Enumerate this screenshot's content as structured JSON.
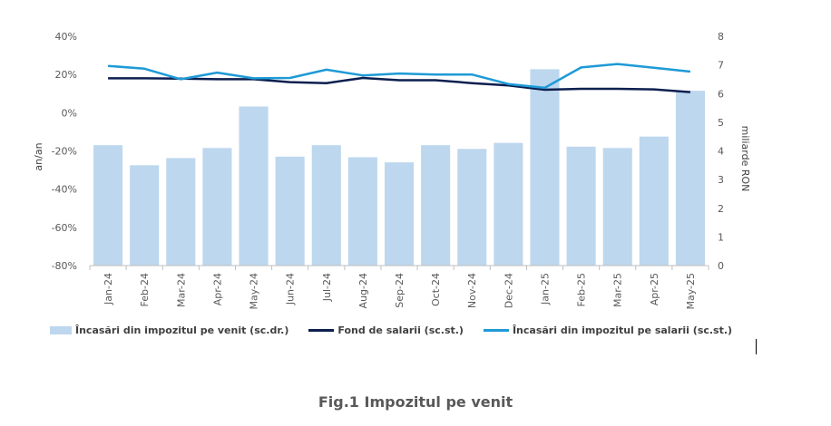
{
  "chart_data": {
    "type": "bar",
    "title": "",
    "categories": [
      "Jan-24",
      "Feb-24",
      "Mar-24",
      "Apr-24",
      "May-24",
      "Jun-24",
      "Jul-24",
      "Aug-24",
      "Sep-24",
      "Oct-24",
      "Nov-24",
      "Dec-24",
      "Jan-25",
      "Feb-25",
      "Mar-25",
      "Apr-25",
      "May-25"
    ],
    "y_left": {
      "label": "an/an",
      "min": -0.8,
      "max": 0.4,
      "ticks": [
        -0.8,
        -0.6,
        -0.4,
        -0.2,
        0,
        0.2,
        0.4
      ],
      "tick_labels": [
        "-80%",
        "-60%",
        "-40%",
        "-20%",
        "0%",
        "20%",
        "40%"
      ]
    },
    "y_right": {
      "label": "miliarde RON",
      "min": 0,
      "max": 8,
      "ticks": [
        0,
        1,
        2,
        3,
        4,
        5,
        6,
        7,
        8
      ],
      "tick_labels": [
        "0",
        "1",
        "2",
        "3",
        "4",
        "5",
        "6",
        "7",
        "8"
      ]
    },
    "series": [
      {
        "name": "Încasări din impozitul pe venit (sc.dr.)",
        "type": "bar",
        "axis": "right",
        "color": "#bdd7ee",
        "values": [
          4.2,
          3.5,
          3.75,
          4.1,
          5.55,
          3.8,
          4.2,
          3.78,
          3.6,
          4.2,
          4.07,
          4.28,
          6.85,
          4.15,
          4.1,
          4.5,
          6.1
        ]
      },
      {
        "name": "Fond de salarii (sc.st.)",
        "type": "line",
        "axis": "left",
        "color": "#0c1f4f",
        "values": [
          0.18,
          0.18,
          0.178,
          0.175,
          0.175,
          0.16,
          0.155,
          0.182,
          0.17,
          0.17,
          0.155,
          0.143,
          0.12,
          0.125,
          0.125,
          0.122,
          0.108
        ]
      },
      {
        "name": "Încasări din impozitul pe salarii (sc.st.)",
        "type": "line",
        "axis": "left",
        "color": "#1e9ad6",
        "values": [
          0.245,
          0.23,
          0.175,
          0.21,
          0.18,
          0.182,
          0.225,
          0.195,
          0.205,
          0.2,
          0.2,
          0.15,
          0.13,
          0.237,
          0.255,
          0.235,
          0.215
        ]
      }
    ],
    "legend_position": "bottom",
    "grid": false
  },
  "figure_caption": "Fig.1 Impozitul pe venit"
}
